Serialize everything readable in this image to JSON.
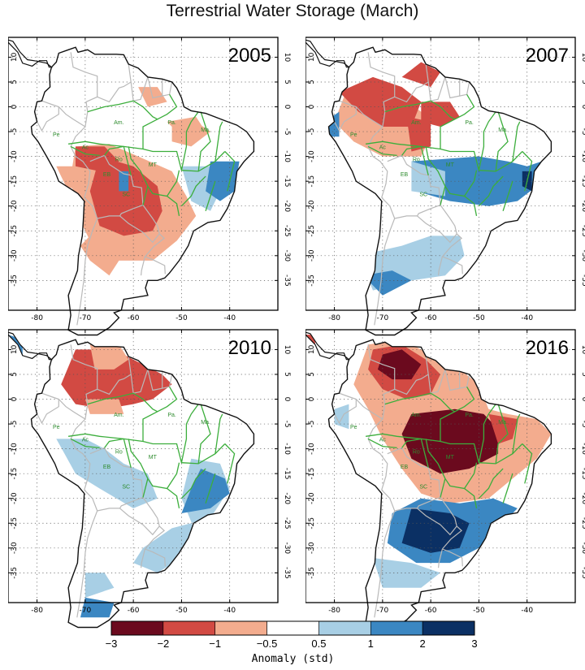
{
  "title": "Terrestrial Water Storage (March)",
  "axes": {
    "lon_ticks": [
      "-80",
      "-70",
      "-60",
      "-50",
      "-40"
    ],
    "lat_ticks": [
      "10",
      "5",
      "0",
      "-5",
      "-10",
      "-15",
      "-20",
      "-25",
      "-30",
      "-35"
    ]
  },
  "panels": [
    {
      "year": "2005"
    },
    {
      "year": "2007"
    },
    {
      "year": "2010"
    },
    {
      "year": "2016"
    }
  ],
  "region_labels": [
    "Am.",
    "Pa.",
    "Ma.",
    "MT",
    "Ro",
    "Ac",
    "EB",
    "SC",
    "Pe"
  ],
  "colorbar": {
    "title": "Anomaly  (std)",
    "tick_labels": [
      "−3",
      "−2",
      "−1",
      "−0.5",
      "0.5",
      "1",
      "2",
      "3"
    ],
    "colors": [
      "#6b0a1e",
      "#d24a43",
      "#f3ac8e",
      "#ffffff",
      "#a8cfe5",
      "#3b87c2",
      "#0b3064"
    ]
  },
  "map_colors": {
    "land": "#ffffff",
    "coast": "#111111",
    "country_border": "#b9b9b9",
    "state_border": "#3cae3c",
    "grid": "#555555"
  }
}
